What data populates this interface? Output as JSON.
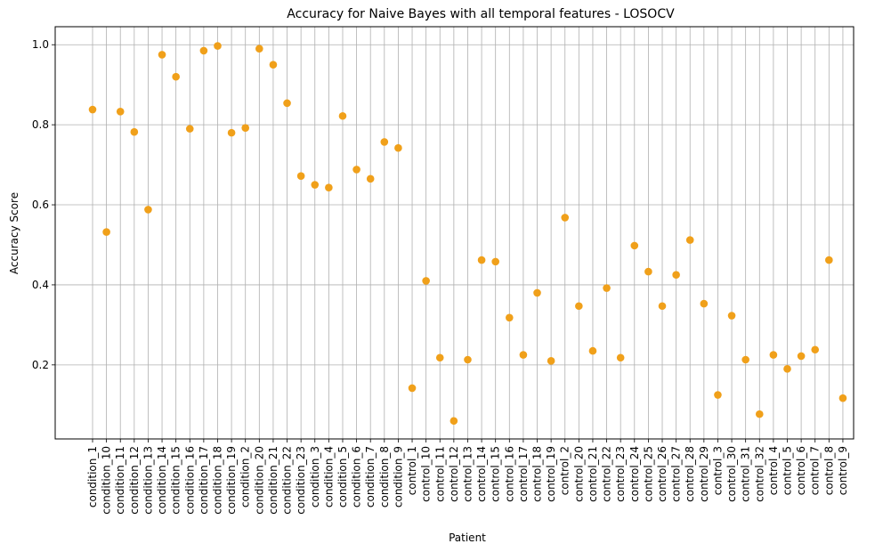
{
  "chart_data": {
    "type": "scatter",
    "title": "Accuracy for Naive Bayes with all temporal features - LOSOCV",
    "xlabel": "Patient",
    "ylabel": "Accuracy Score",
    "ylim": [
      0.015,
      1.045
    ],
    "yticks": [
      "0.2",
      "0.4",
      "0.6",
      "0.8",
      "1.0"
    ],
    "grid": true,
    "marker_color": "#f0a01a",
    "categories": [
      "condition_1",
      "condition_10",
      "condition_11",
      "condition_12",
      "condition_13",
      "condition_14",
      "condition_15",
      "condition_16",
      "condition_17",
      "condition_18",
      "condition_19",
      "condition_2",
      "condition_20",
      "condition_21",
      "condition_22",
      "condition_23",
      "condition_3",
      "condition_4",
      "condition_5",
      "condition_6",
      "condition_7",
      "condition_8",
      "condition_9",
      "control_1",
      "control_10",
      "control_11",
      "control_12",
      "control_13",
      "control_14",
      "control_15",
      "control_16",
      "control_17",
      "control_18",
      "control_19",
      "control_2",
      "control_20",
      "control_21",
      "control_22",
      "control_23",
      "control_24",
      "control_25",
      "control_26",
      "control_27",
      "control_28",
      "control_29",
      "control_3",
      "control_30",
      "control_31",
      "control_32",
      "control_4",
      "control_5",
      "control_6",
      "control_7",
      "control_8",
      "control_9"
    ],
    "values": [
      0.838,
      0.532,
      0.833,
      0.782,
      0.588,
      0.975,
      0.92,
      0.79,
      0.985,
      0.997,
      0.78,
      0.792,
      0.99,
      0.95,
      0.854,
      0.672,
      0.65,
      0.643,
      0.822,
      0.688,
      0.665,
      0.757,
      0.742,
      0.142,
      0.41,
      0.218,
      0.06,
      0.213,
      0.462,
      0.458,
      0.318,
      0.225,
      0.38,
      0.21,
      0.568,
      0.347,
      0.235,
      0.392,
      0.218,
      0.498,
      0.433,
      0.347,
      0.425,
      0.512,
      0.353,
      0.125,
      0.323,
      0.213,
      0.077,
      0.225,
      0.19,
      0.222,
      0.238,
      0.462,
      0.117
    ]
  }
}
